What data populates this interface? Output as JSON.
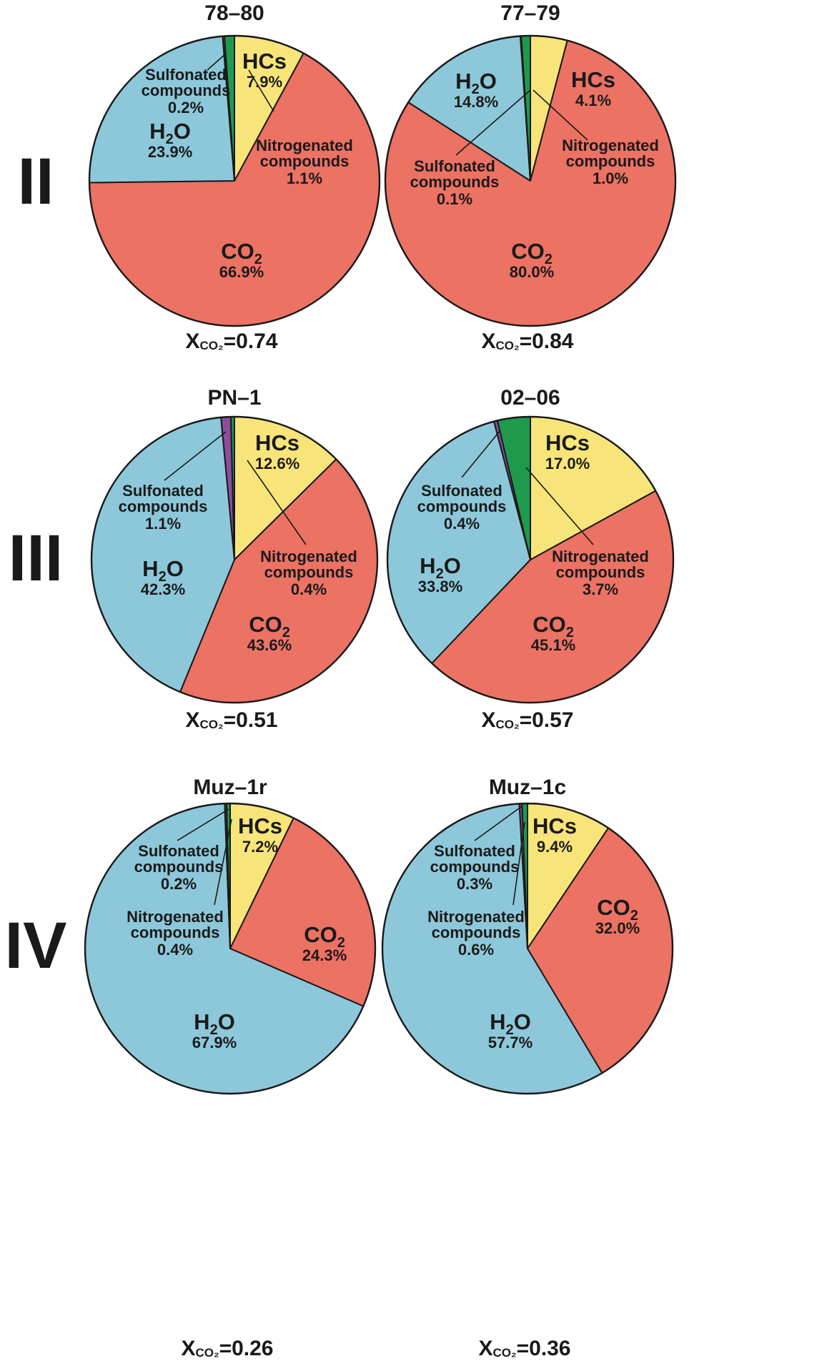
{
  "colors": {
    "HCs": "#F8E57A",
    "CO2": "#EC7264",
    "H2O": "#8DC8DA",
    "Nitrogenated compounds": "#1F9A4C",
    "Sulfonated compounds": "#8B4D9C",
    "outline": "#1a1a1a"
  },
  "rows": [
    {
      "label": "II"
    },
    {
      "label": "III"
    },
    {
      "label": "IV"
    }
  ],
  "chart_data": [
    {
      "type": "pie",
      "title": "78–80",
      "row": "II",
      "categories": [
        "HCs",
        "CO2",
        "H2O",
        "Sulfonated compounds",
        "Nitrogenated compounds"
      ],
      "values": [
        7.9,
        66.9,
        23.9,
        0.2,
        1.1
      ],
      "value_labels": [
        "7.9%",
        "66.9%",
        "23.9%",
        "0.2%",
        "1.1%"
      ],
      "caption": {
        "prefix": "X",
        "sub": "CO₂",
        "value": "=0.74"
      }
    },
    {
      "type": "pie",
      "title": "77–79",
      "row": "II",
      "categories": [
        "HCs",
        "CO2",
        "H2O",
        "Sulfonated compounds",
        "Nitrogenated compounds"
      ],
      "values": [
        4.1,
        80.0,
        14.8,
        0.1,
        1.0
      ],
      "value_labels": [
        "4.1%",
        "80.0%",
        "14.8%",
        "0.1%",
        "1.0%"
      ],
      "caption": {
        "prefix": "X",
        "sub": "CO₂",
        "value": "=0.84"
      }
    },
    {
      "type": "pie",
      "title": "PN–1",
      "row": "III",
      "categories": [
        "HCs",
        "CO2",
        "H2O",
        "Sulfonated compounds",
        "Nitrogenated compounds"
      ],
      "values": [
        12.6,
        43.6,
        42.3,
        1.1,
        0.4
      ],
      "value_labels": [
        "12.6%",
        "43.6%",
        "42.3%",
        "1.1%",
        "0.4%"
      ],
      "caption": {
        "prefix": "X",
        "sub": "CO₂",
        "value": "=0.51"
      }
    },
    {
      "type": "pie",
      "title": "02–06",
      "row": "III",
      "categories": [
        "HCs",
        "CO2",
        "H2O",
        "Sulfonated compounds",
        "Nitrogenated compounds"
      ],
      "values": [
        17.0,
        45.1,
        33.8,
        0.4,
        3.7
      ],
      "value_labels": [
        "17.0%",
        "45.1%",
        "33.8%",
        "0.4%",
        "3.7%"
      ],
      "caption": {
        "prefix": "X",
        "sub": "CO₂",
        "value": "=0.57"
      }
    },
    {
      "type": "pie",
      "title": "Muz–1r",
      "row": "IV",
      "categories": [
        "HCs",
        "CO2",
        "H2O",
        "Sulfonated compounds",
        "Nitrogenated compounds"
      ],
      "values": [
        7.2,
        24.3,
        67.9,
        0.2,
        0.4
      ],
      "value_labels": [
        "7.2%",
        "24.3%",
        "67.9%",
        "0.2%",
        "0.4%"
      ],
      "caption": {
        "prefix": "X",
        "sub": "CO₂",
        "value": "=0.26"
      }
    },
    {
      "type": "pie",
      "title": "Muz–1c",
      "row": "IV",
      "categories": [
        "HCs",
        "CO2",
        "H2O",
        "Sulfonated compounds",
        "Nitrogenated compounds"
      ],
      "values": [
        9.4,
        32.0,
        57.7,
        0.3,
        0.6
      ],
      "value_labels": [
        "9.4%",
        "32.0%",
        "57.7%",
        "0.3%",
        "0.6%"
      ],
      "caption": {
        "prefix": "X",
        "sub": "CO₂",
        "value": "=0.36"
      }
    }
  ]
}
